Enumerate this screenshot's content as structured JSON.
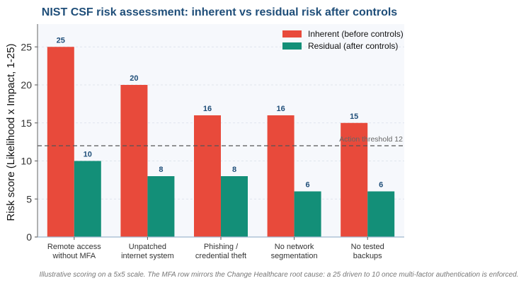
{
  "chart_data": {
    "type": "bar",
    "title": "NIST CSF risk assessment: inherent vs residual risk after controls",
    "xlabel": "",
    "ylabel": "Risk score (Likelihood x Impact, 1-25)",
    "ylim": [
      0,
      28
    ],
    "yticks": [
      0,
      5,
      10,
      15,
      20,
      25
    ],
    "categories": [
      [
        "Remote access",
        "without MFA"
      ],
      [
        "Unpatched",
        "internet system"
      ],
      [
        "Phishing /",
        "credential theft"
      ],
      [
        "No network",
        "segmentation"
      ],
      [
        "No tested",
        "backups"
      ]
    ],
    "series": [
      {
        "name": "Inherent (before controls)",
        "values": [
          25,
          20,
          16,
          16,
          15
        ],
        "color": "#e84a3b"
      },
      {
        "name": "Residual (after controls)",
        "values": [
          10,
          8,
          8,
          6,
          6
        ],
        "color": "#138f78"
      }
    ],
    "threshold": {
      "value": 12,
      "label": "Action threshold 12"
    },
    "legend_placement": "top-right",
    "grid": "horizontal dashed",
    "caption": "Illustrative scoring on a 5x5 scale. The MFA row mirrors the Change Healthcare root cause: a 25 driven to 10 once multi-factor authentication is enforced.",
    "colors": {
      "title": "#1f4e79",
      "plot_bg": "#f6f8fc",
      "data_label": "#1f4e79"
    }
  }
}
